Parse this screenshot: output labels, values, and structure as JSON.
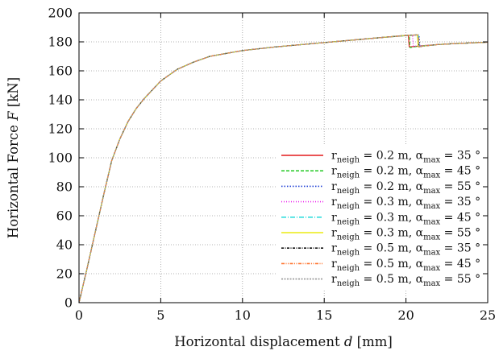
{
  "chart_data": {
    "type": "line",
    "xlabel": "Horizontal displacement",
    "xlabel_symbol": "d",
    "xlabel_unit": "[mm]",
    "ylabel": "Horizontal Force",
    "ylabel_symbol": "F",
    "ylabel_unit": "[kN]",
    "xlim": [
      0,
      25
    ],
    "ylim": [
      0,
      200
    ],
    "x_ticks": [
      0,
      5,
      10,
      15,
      20,
      25
    ],
    "y_ticks": [
      0,
      20,
      40,
      60,
      80,
      100,
      120,
      140,
      160,
      180,
      200
    ],
    "grid": true,
    "grid_style": "dotted",
    "legend_position": "bottom-right",
    "series": [
      {
        "name": "r_neigh = 0.2 m, α_max = 35 °",
        "r": "0.2",
        "alpha": "35",
        "color": "#e41a1c",
        "dash": "",
        "drop_x": 20.15,
        "x": [
          0,
          0.5,
          1,
          1.5,
          2,
          2.5,
          3,
          3.5,
          4,
          5,
          6,
          7,
          8,
          9,
          10,
          12,
          14,
          16,
          18,
          20.15,
          20.2,
          20.5,
          21,
          22,
          23,
          24,
          25
        ],
        "y": [
          0,
          24,
          49,
          74,
          98,
          113,
          125,
          134,
          141,
          153,
          161,
          166,
          170,
          172,
          174,
          176.5,
          178.5,
          180.5,
          182.5,
          184.5,
          176.5,
          176.8,
          177.3,
          178.2,
          178.8,
          179.3,
          179.8
        ]
      },
      {
        "name": "r_neigh = 0.2 m, α_max = 45 °",
        "r": "0.2",
        "alpha": "45",
        "color": "#33cc33",
        "dash": "4,2",
        "drop_x": 20.2,
        "x": [
          0,
          0.5,
          1,
          1.5,
          2,
          2.5,
          3,
          3.5,
          4,
          5,
          6,
          7,
          8,
          9,
          10,
          12,
          14,
          16,
          18,
          20.2,
          20.25,
          20.5,
          21,
          22,
          23,
          24,
          25
        ],
        "y": [
          0,
          24,
          49,
          74,
          98,
          113,
          125,
          134,
          141,
          153,
          161,
          166,
          170,
          172,
          174,
          176.5,
          178.5,
          180.5,
          182.5,
          184.5,
          176,
          176.5,
          177.3,
          178.2,
          178.8,
          179.3,
          179.8
        ]
      },
      {
        "name": "r_neigh = 0.2 m, α_max = 55 °",
        "r": "0.2",
        "alpha": "55",
        "color": "#1f3fd6",
        "dash": "1.5,2",
        "drop_x": 20.8,
        "x": [
          0,
          0.5,
          1,
          1.5,
          2,
          2.5,
          3,
          3.5,
          4,
          5,
          6,
          7,
          8,
          9,
          10,
          12,
          14,
          16,
          18,
          20,
          20.8,
          20.85,
          21,
          22,
          23,
          24,
          25
        ],
        "y": [
          0,
          24,
          49,
          74,
          98,
          113,
          125,
          134,
          141,
          153,
          161,
          166,
          170,
          172,
          174,
          176.5,
          178.5,
          180.5,
          182.5,
          184.5,
          184.8,
          176.5,
          177,
          178.2,
          178.8,
          179.3,
          179.8
        ]
      },
      {
        "name": "r_neigh = 0.3 m, α_max = 35 °",
        "r": "0.3",
        "alpha": "35",
        "color": "#ee22ee",
        "dash": "1,2",
        "drop_x": 20.4,
        "x": [
          0,
          0.5,
          1,
          1.5,
          2,
          2.5,
          3,
          3.5,
          4,
          5,
          6,
          7,
          8,
          9,
          10,
          12,
          14,
          16,
          18,
          20,
          20.4,
          20.45,
          21,
          22,
          23,
          24,
          25
        ],
        "y": [
          0,
          24,
          49,
          74,
          98,
          113,
          125,
          134,
          141,
          153,
          161,
          166,
          170,
          172,
          174,
          176.5,
          178.5,
          180.5,
          182.5,
          184.5,
          184.6,
          177,
          177.4,
          178.2,
          178.8,
          179.3,
          179.8
        ]
      },
      {
        "name": "r_neigh = 0.3 m, α_max = 45 °",
        "r": "0.3",
        "alpha": "45",
        "color": "#33dddd",
        "dash": "6,2,1,2",
        "drop_x": 20.75,
        "x": [
          0,
          0.5,
          1,
          1.5,
          2,
          2.5,
          3,
          3.5,
          4,
          5,
          6,
          7,
          8,
          9,
          10,
          12,
          14,
          16,
          18,
          20,
          20.75,
          20.8,
          21,
          22,
          23,
          24,
          25
        ],
        "y": [
          0,
          24,
          49,
          74,
          98,
          113,
          125,
          134,
          141,
          153,
          161,
          166,
          170,
          172,
          174,
          176.5,
          178.5,
          180.5,
          182.5,
          184.5,
          184.8,
          176.5,
          177,
          178.2,
          178.8,
          179.3,
          179.8
        ]
      },
      {
        "name": "r_neigh = 0.3 m, α_max = 55 °",
        "r": "0.3",
        "alpha": "55",
        "color": "#ecec11",
        "dash": "",
        "drop_x": 20.7,
        "x": [
          0,
          0.5,
          1,
          1.5,
          2,
          2.5,
          3,
          3.5,
          4,
          5,
          6,
          7,
          8,
          9,
          10,
          12,
          14,
          16,
          18,
          20,
          20.7,
          20.75,
          21,
          22,
          23,
          24,
          25
        ],
        "y": [
          0,
          24,
          49,
          74,
          98,
          113,
          125,
          134,
          141,
          153,
          161,
          166,
          170,
          172,
          174,
          176.5,
          178.5,
          180.5,
          182.5,
          184.5,
          184.8,
          176.5,
          177,
          178.2,
          178.8,
          179.3,
          179.8
        ]
      },
      {
        "name": "r_neigh = 0.5 m, α_max = 35 °",
        "r": "0.5",
        "alpha": "35",
        "color": "#111111",
        "dash": "3,1.5,1,1.5",
        "drop_x": 20.75,
        "x": [
          0,
          0.5,
          1,
          1.5,
          2,
          2.5,
          3,
          3.5,
          4,
          5,
          6,
          7,
          8,
          9,
          10,
          12,
          14,
          16,
          18,
          20,
          20.75,
          20.8,
          21,
          22,
          23,
          24,
          25
        ],
        "y": [
          0,
          24,
          49,
          74,
          98,
          113,
          125,
          134,
          141,
          153,
          161,
          166,
          170,
          172,
          174,
          176.5,
          178.5,
          180.5,
          182.5,
          184.5,
          184.8,
          176.5,
          177,
          178.2,
          178.8,
          179.3,
          179.8
        ]
      },
      {
        "name": "r_neigh = 0.5 m, α_max = 45 °",
        "r": "0.5",
        "alpha": "45",
        "color": "#ff7733",
        "dash": "4,1.5,1,1.5,1,1.5",
        "drop_x": 20.75,
        "x": [
          0,
          0.5,
          1,
          1.5,
          2,
          2.5,
          3,
          3.5,
          4,
          5,
          6,
          7,
          8,
          9,
          10,
          12,
          14,
          16,
          18,
          20,
          20.75,
          20.8,
          21,
          22,
          23,
          24,
          25
        ],
        "y": [
          0,
          24,
          49,
          74,
          98,
          113,
          125,
          134,
          141,
          153,
          161,
          166,
          170,
          172,
          174,
          176.5,
          178.5,
          180.5,
          182.5,
          184.5,
          184.8,
          176.5,
          177,
          178.2,
          178.8,
          179.3,
          179.8
        ]
      },
      {
        "name": "r_neigh = 0.5 m, α_max = 55 °",
        "r": "0.5",
        "alpha": "55",
        "color": "#999999",
        "dash": "2,1.5",
        "drop_x": 20.75,
        "x": [
          0,
          0.5,
          1,
          1.5,
          2,
          2.5,
          3,
          3.5,
          4,
          5,
          6,
          7,
          8,
          9,
          10,
          12,
          14,
          16,
          18,
          20,
          20.75,
          20.8,
          21,
          22,
          23,
          24,
          25
        ],
        "y": [
          0,
          24,
          49,
          74,
          98,
          113,
          125,
          134,
          141,
          153,
          161,
          166,
          170,
          172,
          174,
          176.5,
          178.5,
          180.5,
          182.5,
          184.5,
          184.8,
          176.5,
          177,
          178.2,
          178.8,
          179.3,
          179.8
        ]
      }
    ]
  }
}
